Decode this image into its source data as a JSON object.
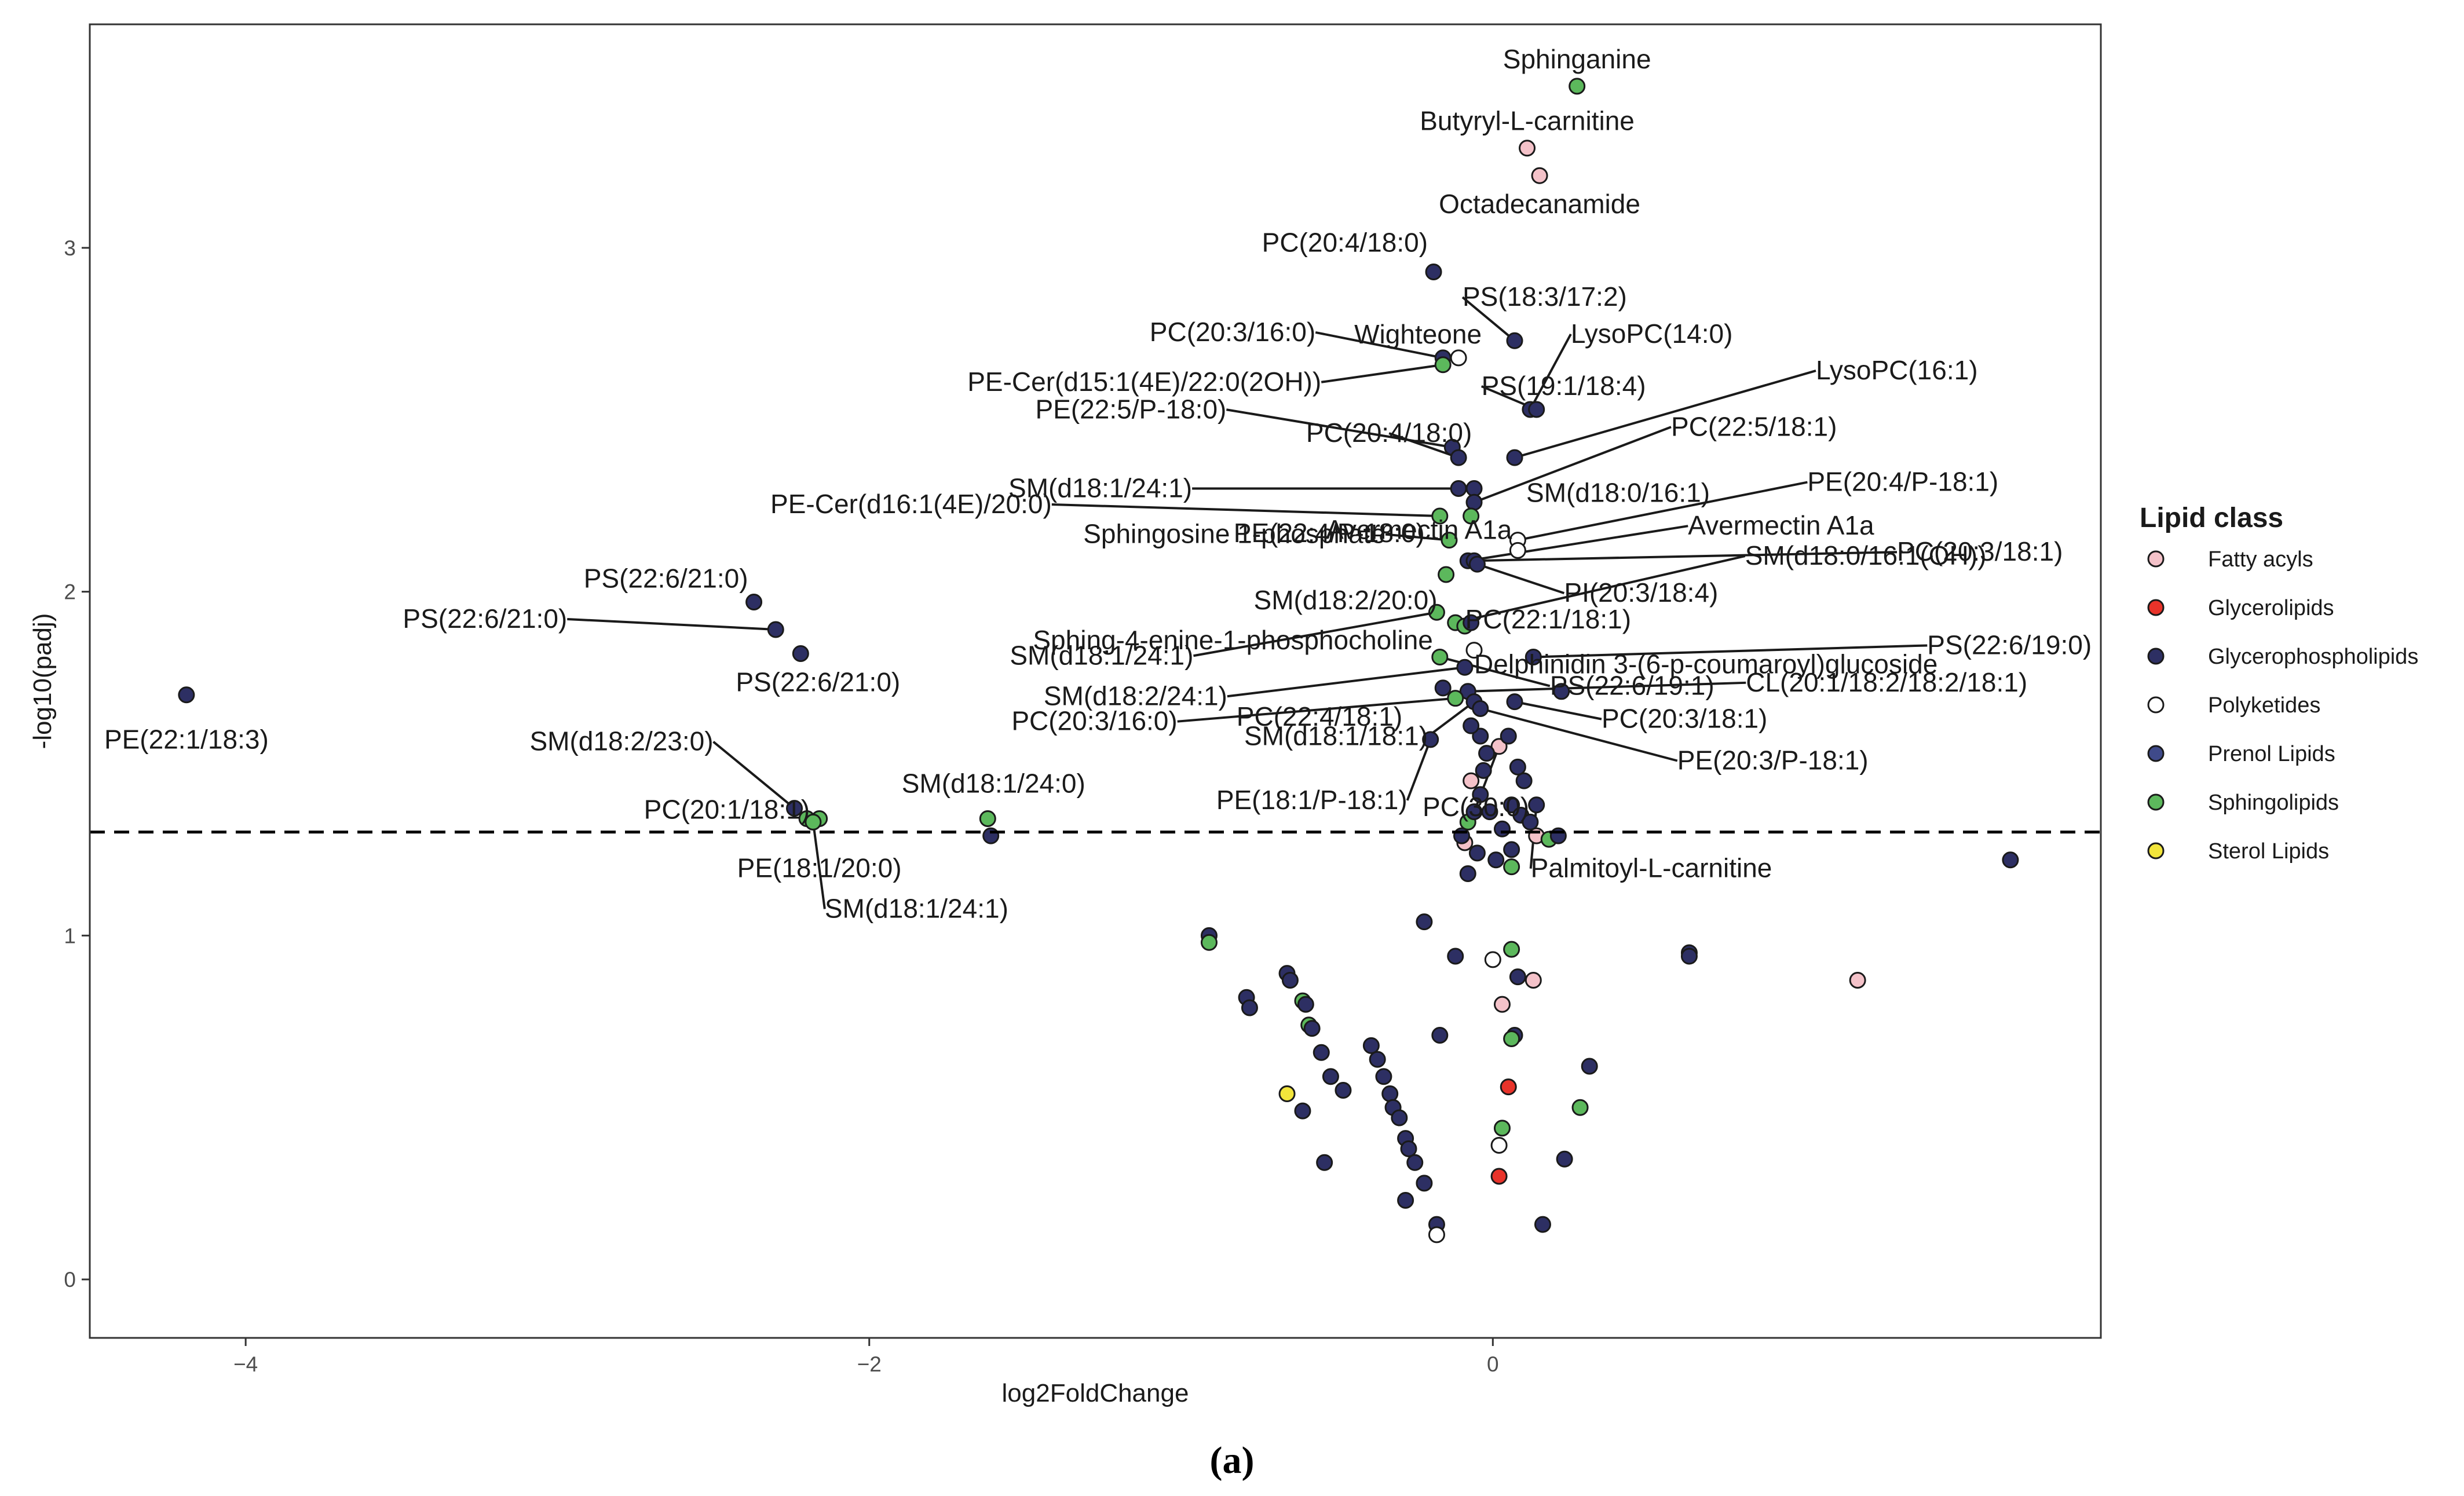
{
  "chart_data": {
    "type": "scatter",
    "subtype": "volcano",
    "title": "",
    "xlabel": "log2FoldChange",
    "ylabel": "-log10(padj)",
    "xlim": [
      -4.5,
      1.95
    ],
    "ylim": [
      -0.17,
      3.65
    ],
    "xticks": [
      -4,
      -2,
      0
    ],
    "yticks": [
      0,
      1,
      2,
      3
    ],
    "threshold_y": 1.301,
    "caption": "(a)",
    "legend": {
      "title": "Lipid class",
      "position": "right",
      "entries": [
        {
          "name": "Fatty acyls",
          "color": "#f4c2c9"
        },
        {
          "name": "Glycerolipids",
          "color": "#e8332a"
        },
        {
          "name": "Glycerophospholipids",
          "color": "#2d2f63"
        },
        {
          "name": "Polyketides",
          "color": "#ffffff"
        },
        {
          "name": "Prenol Lipids",
          "color": "#3f4a8a"
        },
        {
          "name": "Sphingolipids",
          "color": "#5cb85c"
        },
        {
          "name": "Sterol Lipids",
          "color": "#f2e53b"
        }
      ]
    },
    "points": [
      {
        "x": 0.27,
        "y": 3.47,
        "class": "Sphingolipids",
        "label": "Sphinganine"
      },
      {
        "x": 0.11,
        "y": 3.29,
        "class": "Fatty acyls",
        "label": "Butyryl-L-carnitine"
      },
      {
        "x": 0.15,
        "y": 3.21,
        "class": "Fatty acyls",
        "label": "Octadecanamide"
      },
      {
        "x": -0.19,
        "y": 2.93,
        "class": "Glycerophospholipids",
        "label": "PC(20:4/18:0)"
      },
      {
        "x": 0.07,
        "y": 2.73,
        "class": "Glycerophospholipids",
        "label": "PS(18:3/17:2)"
      },
      {
        "x": -0.16,
        "y": 2.68,
        "class": "Glycerophospholipids",
        "label": "PC(20:3/16:0)"
      },
      {
        "x": -0.11,
        "y": 2.68,
        "class": "Polyketides",
        "label": "Wighteone"
      },
      {
        "x": -0.16,
        "y": 2.66,
        "class": "Sphingolipids",
        "label": "PE-Cer(d15:1(4E)/22:0(2OH))"
      },
      {
        "x": 0.12,
        "y": 2.53,
        "class": "Glycerophospholipids",
        "label": "LysoPC(14:0)"
      },
      {
        "x": 0.14,
        "y": 2.53,
        "class": "Glycerophospholipids",
        "label": "PS(19:1/18:4)"
      },
      {
        "x": -0.13,
        "y": 2.42,
        "class": "Glycerophospholipids",
        "label": "PE(22:5/P-18:0)"
      },
      {
        "x": -0.11,
        "y": 2.39,
        "class": "Glycerophospholipids",
        "label": "PC(20:4/18:0)"
      },
      {
        "x": 0.07,
        "y": 2.39,
        "class": "Glycerophospholipids",
        "label": "LysoPC(16:1)"
      },
      {
        "x": -0.11,
        "y": 2.3,
        "class": "Glycerophospholipids",
        "label": "SM(d18:1/24:1)"
      },
      {
        "x": -0.06,
        "y": 2.3,
        "class": "Glycerophospholipids",
        "label": "SM(d18:0/16:1)"
      },
      {
        "x": -0.06,
        "y": 2.26,
        "class": "Glycerophospholipids",
        "label": "PC(22:5/18:1)"
      },
      {
        "x": -0.17,
        "y": 2.22,
        "class": "Sphingolipids",
        "label": "PE-Cer(d16:1(4E)/20:0)"
      },
      {
        "x": -0.07,
        "y": 2.22,
        "class": "Sphingolipids",
        "label": "PE(22:4/P-18:0)"
      },
      {
        "x": -0.14,
        "y": 2.15,
        "class": "Sphingolipids",
        "label": "Sphingosine 1-phosphate"
      },
      {
        "x": 0.08,
        "y": 2.15,
        "class": "Polyketides",
        "label": "PE(20:4/P-18:1)"
      },
      {
        "x": 0.08,
        "y": 2.12,
        "class": "Polyketides",
        "label": "Avermectin A1a"
      },
      {
        "x": -0.08,
        "y": 2.09,
        "class": "Glycerophospholipids",
        "label": "Avermectin A1a"
      },
      {
        "x": -0.06,
        "y": 2.09,
        "class": "Glycerophospholipids",
        "label": "PC(20:3/18:1)"
      },
      {
        "x": -0.05,
        "y": 2.08,
        "class": "Glycerophospholipids",
        "label": "PI(20:3/18:4)"
      },
      {
        "x": -0.15,
        "y": 2.05,
        "class": "Sphingolipids",
        "label": "SM(d18:2/20:0)"
      },
      {
        "x": -0.18,
        "y": 1.94,
        "class": "Sphingolipids",
        "label": "SM(d18:1/24:1)"
      },
      {
        "x": -0.12,
        "y": 1.91,
        "class": "Sphingolipids",
        "label": "SM(d18:0/16:1(OH))"
      },
      {
        "x": -0.09,
        "y": 1.9,
        "class": "Sphingolipids",
        "label": "Sphing-4-enine-1-phosphocholine"
      },
      {
        "x": -0.07,
        "y": 1.91,
        "class": "Glycerophospholipids",
        "label": "PC(22:1/18:1)"
      },
      {
        "x": -0.06,
        "y": 1.83,
        "class": "Polyketides",
        "label": "Delphinidin 3-(6-p-coumaroyl)glucoside"
      },
      {
        "x": 0.13,
        "y": 1.81,
        "class": "Glycerophospholipids",
        "label": "PS(22:6/19:0)"
      },
      {
        "x": -0.17,
        "y": 1.81,
        "class": "Sphingolipids",
        "label": "PS(22:6/19:1)"
      },
      {
        "x": -0.09,
        "y": 1.78,
        "class": "Glycerophospholipids",
        "label": "SM(d18:2/24:1)"
      },
      {
        "x": -0.16,
        "y": 1.72,
        "class": "Glycerophospholipids",
        "label": "PC(22:4/18:1)"
      },
      {
        "x": -0.08,
        "y": 1.71,
        "class": "Glycerophospholipids",
        "label": "CL(20:1/18:2/18:2/18:1)"
      },
      {
        "x": 0.22,
        "y": 1.71,
        "class": "Glycerophospholipids",
        "label": ""
      },
      {
        "x": -0.12,
        "y": 1.69,
        "class": "Sphingolipids",
        "label": "PC(20:3/16:0)"
      },
      {
        "x": -0.06,
        "y": 1.68,
        "class": "Glycerophospholipids",
        "label": "SM(d18:1/18:1)"
      },
      {
        "x": 0.07,
        "y": 1.68,
        "class": "Glycerophospholipids",
        "label": "PC(20:3/18:1)"
      },
      {
        "x": -0.04,
        "y": 1.66,
        "class": "Glycerophospholipids",
        "label": "PE(20:3/P-18:1)"
      },
      {
        "x": -0.2,
        "y": 1.57,
        "class": "Glycerophospholipids",
        "label": "PE(18:1/P-18:1)"
      },
      {
        "x": 0.02,
        "y": 1.55,
        "class": "Fatty acyls",
        "label": "PC(30:0)"
      },
      {
        "x": 0.14,
        "y": 1.38,
        "class": "Glycerophospholipids",
        "label": "Palmitoyl-L-carnitine"
      },
      {
        "x": -2.37,
        "y": 1.97,
        "class": "Glycerophospholipids",
        "label": "PS(22:6/21:0)"
      },
      {
        "x": -2.3,
        "y": 1.89,
        "class": "Glycerophospholipids",
        "label": "PS(22:6/21:0)"
      },
      {
        "x": -2.22,
        "y": 1.82,
        "class": "Glycerophospholipids",
        "label": "PS(22:6/21:0)"
      },
      {
        "x": -4.19,
        "y": 1.7,
        "class": "Glycerophospholipids",
        "label": "PE(22:1/18:3)"
      },
      {
        "x": -2.24,
        "y": 1.37,
        "class": "Glycerophospholipids",
        "label": "SM(d18:2/23:0)"
      },
      {
        "x": -2.2,
        "y": 1.34,
        "class": "Sphingolipids",
        "label": "PC(20:1/18:1)"
      },
      {
        "x": -2.16,
        "y": 1.34,
        "class": "Sphingolipids",
        "label": "PE(18:1/20:0)"
      },
      {
        "x": -2.18,
        "y": 1.33,
        "class": "Sphingolipids",
        "label": "SM(d18:1/24:1)"
      },
      {
        "x": -1.62,
        "y": 1.34,
        "class": "Sphingolipids",
        "label": "SM(d18:1/24:0)"
      },
      {
        "x": -1.61,
        "y": 1.29,
        "class": "Glycerophospholipids",
        "label": ""
      },
      {
        "x": 1.66,
        "y": 1.22,
        "class": "Glycerophospholipids",
        "label": ""
      },
      {
        "x": 1.17,
        "y": 0.87,
        "class": "Fatty acyls",
        "label": ""
      },
      {
        "x": 0.63,
        "y": 0.95,
        "class": "Glycerophospholipids",
        "label": ""
      },
      {
        "x": 0.63,
        "y": 0.94,
        "class": "Glycerophospholipids",
        "label": ""
      },
      {
        "x": -0.91,
        "y": 1.0,
        "class": "Glycerophospholipids",
        "label": ""
      },
      {
        "x": -0.91,
        "y": 0.98,
        "class": "Sphingolipids",
        "label": ""
      },
      {
        "x": -0.79,
        "y": 0.82,
        "class": "Glycerophospholipids",
        "label": ""
      },
      {
        "x": -0.78,
        "y": 0.79,
        "class": "Glycerophospholipids",
        "label": ""
      },
      {
        "x": -0.66,
        "y": 0.89,
        "class": "Glycerophospholipids",
        "label": ""
      },
      {
        "x": -0.65,
        "y": 0.87,
        "class": "Glycerophospholipids",
        "label": ""
      },
      {
        "x": -0.61,
        "y": 0.81,
        "class": "Sphingolipids",
        "label": ""
      },
      {
        "x": -0.6,
        "y": 0.8,
        "class": "Glycerophospholipids",
        "label": ""
      },
      {
        "x": -0.59,
        "y": 0.74,
        "class": "Sphingolipids",
        "label": ""
      },
      {
        "x": -0.58,
        "y": 0.73,
        "class": "Glycerophospholipids",
        "label": ""
      },
      {
        "x": -0.55,
        "y": 0.66,
        "class": "Glycerophospholipids",
        "label": ""
      },
      {
        "x": -0.52,
        "y": 0.59,
        "class": "Glycerophospholipids",
        "label": ""
      },
      {
        "x": -0.48,
        "y": 0.55,
        "class": "Glycerophospholipids",
        "label": ""
      },
      {
        "x": -0.66,
        "y": 0.54,
        "class": "Sterol Lipids",
        "label": ""
      },
      {
        "x": -0.61,
        "y": 0.49,
        "class": "Glycerophospholipids",
        "label": ""
      },
      {
        "x": -0.54,
        "y": 0.34,
        "class": "Glycerophospholipids",
        "label": ""
      },
      {
        "x": -0.39,
        "y": 0.68,
        "class": "Glycerophospholipids",
        "label": ""
      },
      {
        "x": -0.37,
        "y": 0.64,
        "class": "Glycerophospholipids",
        "label": ""
      },
      {
        "x": -0.35,
        "y": 0.59,
        "class": "Glycerophospholipids",
        "label": ""
      },
      {
        "x": -0.33,
        "y": 0.54,
        "class": "Glycerophospholipids",
        "label": ""
      },
      {
        "x": -0.32,
        "y": 0.5,
        "class": "Glycerophospholipids",
        "label": ""
      },
      {
        "x": -0.3,
        "y": 0.47,
        "class": "Glycerophospholipids",
        "label": ""
      },
      {
        "x": -0.28,
        "y": 0.41,
        "class": "Glycerophospholipids",
        "label": ""
      },
      {
        "x": -0.27,
        "y": 0.38,
        "class": "Glycerophospholipids",
        "label": ""
      },
      {
        "x": -0.25,
        "y": 0.34,
        "class": "Glycerophospholipids",
        "label": ""
      },
      {
        "x": -0.22,
        "y": 0.28,
        "class": "Glycerophospholipids",
        "label": ""
      },
      {
        "x": -0.28,
        "y": 0.23,
        "class": "Glycerophospholipids",
        "label": ""
      },
      {
        "x": -0.18,
        "y": 0.16,
        "class": "Glycerophospholipids",
        "label": ""
      },
      {
        "x": -0.18,
        "y": 0.13,
        "class": "Polyketides",
        "label": ""
      },
      {
        "x": -0.22,
        "y": 1.04,
        "class": "Glycerophospholipids",
        "label": ""
      },
      {
        "x": -0.17,
        "y": 0.71,
        "class": "Glycerophospholipids",
        "label": ""
      },
      {
        "x": -0.12,
        "y": 0.94,
        "class": "Glycerophospholipids",
        "label": ""
      },
      {
        "x": 0.07,
        "y": 0.71,
        "class": "Glycerophospholipids",
        "label": ""
      },
      {
        "x": 0.06,
        "y": 0.7,
        "class": "Sphingolipids",
        "label": ""
      },
      {
        "x": 0.28,
        "y": 0.5,
        "class": "Sphingolipids",
        "label": ""
      },
      {
        "x": 0.31,
        "y": 0.62,
        "class": "Glycerophospholipids",
        "label": ""
      },
      {
        "x": 0.23,
        "y": 0.35,
        "class": "Glycerophospholipids",
        "label": ""
      },
      {
        "x": 0.16,
        "y": 0.16,
        "class": "Glycerophospholipids",
        "label": ""
      },
      {
        "x": 0.13,
        "y": 0.87,
        "class": "Fatty acyls",
        "label": ""
      },
      {
        "x": 0.08,
        "y": 0.88,
        "class": "Glycerophospholipids",
        "label": ""
      },
      {
        "x": 0.05,
        "y": 0.56,
        "class": "Glycerolipids",
        "label": ""
      },
      {
        "x": 0.02,
        "y": 0.3,
        "class": "Glycerolipids",
        "label": ""
      },
      {
        "x": 0.03,
        "y": 0.44,
        "class": "Sphingolipids",
        "label": ""
      },
      {
        "x": 0.02,
        "y": 0.39,
        "class": "Polyketides",
        "label": ""
      },
      {
        "x": 0.0,
        "y": 0.93,
        "class": "Polyketides",
        "label": ""
      },
      {
        "x": 0.03,
        "y": 0.8,
        "class": "Fatty acyls",
        "label": ""
      },
      {
        "x": 0.06,
        "y": 0.96,
        "class": "Sphingolipids",
        "label": ""
      },
      {
        "x": 0.06,
        "y": 1.2,
        "class": "Sphingolipids",
        "label": ""
      },
      {
        "x": -0.09,
        "y": 1.27,
        "class": "Fatty acyls",
        "label": ""
      },
      {
        "x": 0.14,
        "y": 1.29,
        "class": "Fatty acyls",
        "label": ""
      },
      {
        "x": 0.18,
        "y": 1.28,
        "class": "Sphingolipids",
        "label": ""
      },
      {
        "x": 0.21,
        "y": 1.29,
        "class": "Glycerophospholipids",
        "label": ""
      },
      {
        "x": -0.08,
        "y": 1.33,
        "class": "Sphingolipids",
        "label": ""
      },
      {
        "x": -0.07,
        "y": 1.45,
        "class": "Fatty acyls",
        "label": ""
      },
      {
        "x": -0.06,
        "y": 1.36,
        "class": "Glycerophospholipids",
        "label": ""
      },
      {
        "x": -0.04,
        "y": 1.41,
        "class": "Glycerophospholipids",
        "label": ""
      },
      {
        "x": -0.03,
        "y": 1.48,
        "class": "Glycerophospholipids",
        "label": ""
      },
      {
        "x": -0.02,
        "y": 1.53,
        "class": "Glycerophospholipids",
        "label": ""
      },
      {
        "x": -0.04,
        "y": 1.58,
        "class": "Glycerophospholipids",
        "label": ""
      },
      {
        "x": -0.07,
        "y": 1.61,
        "class": "Glycerophospholipids",
        "label": ""
      },
      {
        "x": -0.05,
        "y": 1.24,
        "class": "Glycerophospholipids",
        "label": ""
      },
      {
        "x": -0.08,
        "y": 1.18,
        "class": "Glycerophospholipids",
        "label": ""
      },
      {
        "x": -0.1,
        "y": 1.29,
        "class": "Glycerophospholipids",
        "label": ""
      },
      {
        "x": 0.03,
        "y": 1.31,
        "class": "Glycerophospholipids",
        "label": ""
      },
      {
        "x": 0.06,
        "y": 1.38,
        "class": "Glycerophospholipids",
        "label": ""
      },
      {
        "x": 0.09,
        "y": 1.35,
        "class": "Glycerophospholipids",
        "label": ""
      },
      {
        "x": 0.1,
        "y": 1.45,
        "class": "Glycerophospholipids",
        "label": ""
      },
      {
        "x": 0.12,
        "y": 1.33,
        "class": "Glycerophospholipids",
        "label": ""
      },
      {
        "x": 0.08,
        "y": 1.49,
        "class": "Glycerophospholipids",
        "label": ""
      },
      {
        "x": 0.05,
        "y": 1.58,
        "class": "Glycerophospholipids",
        "label": ""
      },
      {
        "x": -0.01,
        "y": 1.36,
        "class": "Glycerophospholipids",
        "label": ""
      },
      {
        "x": 0.01,
        "y": 1.22,
        "class": "Glycerophospholipids",
        "label": ""
      },
      {
        "x": 0.06,
        "y": 1.25,
        "class": "Glycerophospholipids",
        "label": ""
      }
    ]
  }
}
